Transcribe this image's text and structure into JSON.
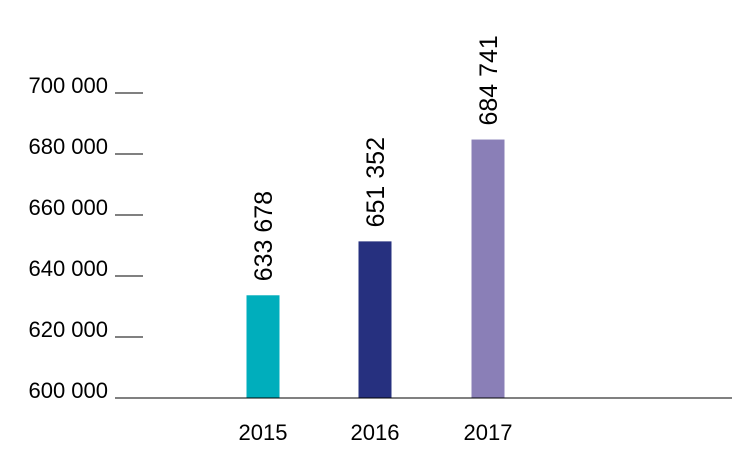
{
  "chart_data": {
    "type": "bar",
    "title": "",
    "xlabel": "",
    "ylabel": "",
    "categories": [
      "2015",
      "2016",
      "2017"
    ],
    "values": [
      633678,
      651352,
      684741
    ],
    "value_labels": [
      "633 678",
      "651 352",
      "684 741"
    ],
    "bar_colors": [
      "#00aebc",
      "#26307f",
      "#8a7fb7"
    ],
    "ylim": [
      600000,
      700000
    ],
    "yticks": [
      600000,
      620000,
      640000,
      660000,
      680000,
      700000
    ],
    "ytick_labels": [
      "600 000",
      "620 000",
      "640 000",
      "660 000",
      "680 000",
      "700 000"
    ],
    "grid": false,
    "legend": "none",
    "axis_color": "#000000"
  }
}
